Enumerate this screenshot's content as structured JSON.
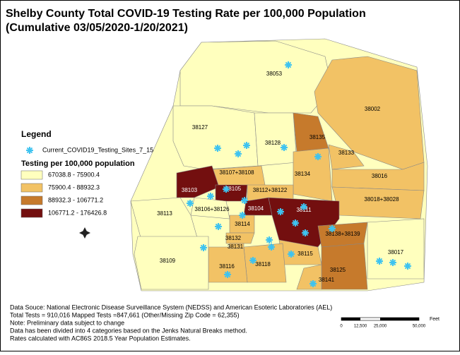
{
  "title": "Shelby County Total COVID-19 Testing Rate per 100,000 Population",
  "subtitle": "(Cumulative 03/05/2020-1/20/2021)",
  "legend": {
    "title": "Legend",
    "site_layer": "Current_COVID19_Testing_Sites_7_15",
    "rate_title": "Testing per 100,000 population",
    "classes": [
      {
        "label": "67038.8 - 75900.4",
        "color": "#ffffbe"
      },
      {
        "label": "75900.4 - 88932.3",
        "color": "#f2c265"
      },
      {
        "label": "88932.3 - 106771.2",
        "color": "#c67a2c"
      },
      {
        "label": "106771.2 - 176426.8",
        "color": "#730f0f"
      }
    ]
  },
  "zip_areas": [
    {
      "label": "38053",
      "class": 0
    },
    {
      "label": "38002",
      "class": 1
    },
    {
      "label": "38127",
      "class": 0
    },
    {
      "label": "38128",
      "class": 0
    },
    {
      "label": "38135",
      "class": 2
    },
    {
      "label": "38133",
      "class": 1
    },
    {
      "label": "38134",
      "class": 1
    },
    {
      "label": "38016",
      "class": 1
    },
    {
      "label": "38018+38028",
      "class": 1
    },
    {
      "label": "38107+38108",
      "class": 1
    },
    {
      "label": "38103",
      "class": 3
    },
    {
      "label": "38105",
      "class": 3
    },
    {
      "label": "38112+38122",
      "class": 1
    },
    {
      "label": "38106+38126",
      "class": 0
    },
    {
      "label": "38113",
      "class": 0
    },
    {
      "label": "38104",
      "class": 3
    },
    {
      "label": "38114",
      "class": 1
    },
    {
      "label": "38111",
      "class": 3
    },
    {
      "label": "38138+38139",
      "class": 2
    },
    {
      "label": "38125",
      "class": 2
    },
    {
      "label": "38141",
      "class": 1
    },
    {
      "label": "38115",
      "class": 1
    },
    {
      "label": "38118",
      "class": 1
    },
    {
      "label": "38116",
      "class": 1
    },
    {
      "label": "38132",
      "class": 1
    },
    {
      "label": "38131",
      "class": 1
    },
    {
      "label": "38109",
      "class": 0
    },
    {
      "label": "38017",
      "class": 0
    }
  ],
  "notes": [
    "Data Souce: National Electronic Disease Surveillance System (NEDSS) and American Esoteric Laboratories (AEL)",
    "Total Tests = 910,016 Mapped Tests =847,661 (Other/Missing Zip Code = 62,355)",
    "Note: Preliminary data subject to change",
    "Data has been divided into 4 categories based on the Jenks Natural Breaks method.",
    "Rates calculated with AC86S 2018.5 Year Population Estimates."
  ],
  "scale_bar": {
    "unit": "Feet",
    "ticks": [
      "0",
      "12,500",
      "25,000",
      "50,000"
    ]
  }
}
